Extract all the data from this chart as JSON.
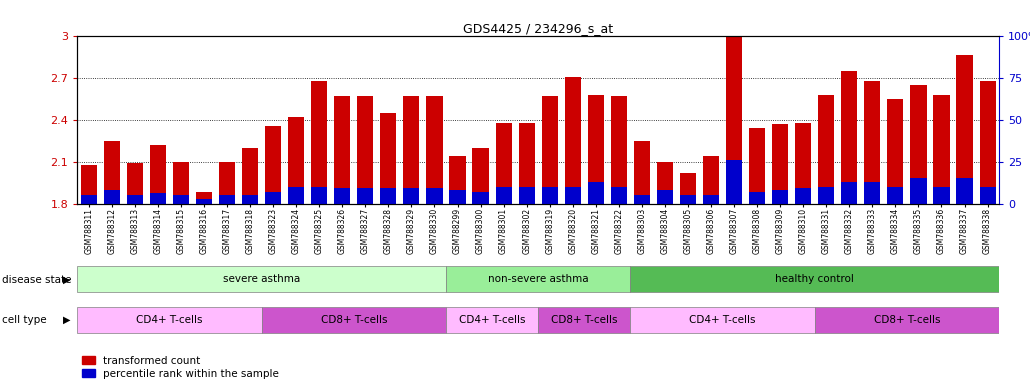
{
  "title": "GDS4425 / 234296_s_at",
  "samples": [
    "GSM788311",
    "GSM788312",
    "GSM788313",
    "GSM788314",
    "GSM788315",
    "GSM788316",
    "GSM788317",
    "GSM788318",
    "GSM788323",
    "GSM788324",
    "GSM788325",
    "GSM788326",
    "GSM788327",
    "GSM788328",
    "GSM788329",
    "GSM788330",
    "GSM788299",
    "GSM788300",
    "GSM788301",
    "GSM788302",
    "GSM788319",
    "GSM788320",
    "GSM788321",
    "GSM788322",
    "GSM788303",
    "GSM788304",
    "GSM788305",
    "GSM788306",
    "GSM788307",
    "GSM788308",
    "GSM788309",
    "GSM788310",
    "GSM788331",
    "GSM788332",
    "GSM788333",
    "GSM788334",
    "GSM788335",
    "GSM788336",
    "GSM788337",
    "GSM788338"
  ],
  "transformed_count": [
    2.08,
    2.25,
    2.09,
    2.22,
    2.1,
    1.88,
    2.1,
    2.2,
    2.36,
    2.42,
    2.68,
    2.57,
    2.57,
    2.45,
    2.57,
    2.57,
    2.14,
    2.2,
    2.38,
    2.38,
    2.57,
    2.71,
    2.58,
    2.57,
    2.25,
    2.1,
    2.02,
    2.14,
    3.0,
    2.34,
    2.37,
    2.38,
    2.58,
    2.75,
    2.68,
    2.55,
    2.65,
    2.58,
    2.87,
    2.68
  ],
  "percentile_rank": [
    5,
    8,
    5,
    6,
    5,
    3,
    5,
    5,
    7,
    10,
    10,
    9,
    9,
    9,
    9,
    9,
    8,
    7,
    10,
    10,
    10,
    10,
    13,
    10,
    5,
    8,
    5,
    5,
    26,
    7,
    8,
    9,
    10,
    13,
    13,
    10,
    15,
    10,
    15,
    10
  ],
  "bar_bottom": 1.8,
  "ylim_left": [
    1.8,
    3.0
  ],
  "ylim_right": [
    0,
    100
  ],
  "yticks_left": [
    1.8,
    2.1,
    2.4,
    2.7,
    3.0
  ],
  "yticks_right": [
    0,
    25,
    50,
    75,
    100
  ],
  "ytick_labels_left": [
    "1.8",
    "2.1",
    "2.4",
    "2.7",
    "3"
  ],
  "ytick_labels_right": [
    "0",
    "25",
    "50",
    "75",
    "100%"
  ],
  "disease_state_groups": [
    {
      "label": "severe asthma",
      "start": 0,
      "end": 16,
      "color": "#ccffcc"
    },
    {
      "label": "non-severe asthma",
      "start": 16,
      "end": 24,
      "color": "#99ee99"
    },
    {
      "label": "healthy control",
      "start": 24,
      "end": 40,
      "color": "#55bb55"
    }
  ],
  "cell_type_groups": [
    {
      "label": "CD4+ T-cells",
      "start": 0,
      "end": 8,
      "color": "#ffbbff"
    },
    {
      "label": "CD8+ T-cells",
      "start": 8,
      "end": 16,
      "color": "#cc55cc"
    },
    {
      "label": "CD4+ T-cells",
      "start": 16,
      "end": 20,
      "color": "#ffbbff"
    },
    {
      "label": "CD8+ T-cells",
      "start": 20,
      "end": 24,
      "color": "#cc55cc"
    },
    {
      "label": "CD4+ T-cells",
      "start": 24,
      "end": 32,
      "color": "#ffbbff"
    },
    {
      "label": "CD8+ T-cells",
      "start": 32,
      "end": 40,
      "color": "#cc55cc"
    }
  ],
  "bar_color_red": "#cc0000",
  "bar_color_blue": "#0000cc",
  "tick_color_left": "#cc0000",
  "tick_color_right": "#0000cc",
  "grid_color": "#000000",
  "background_color": "#ffffff",
  "label_disease_state": "disease state",
  "label_cell_type": "cell type",
  "legend_items": [
    "transformed count",
    "percentile rank within the sample"
  ]
}
